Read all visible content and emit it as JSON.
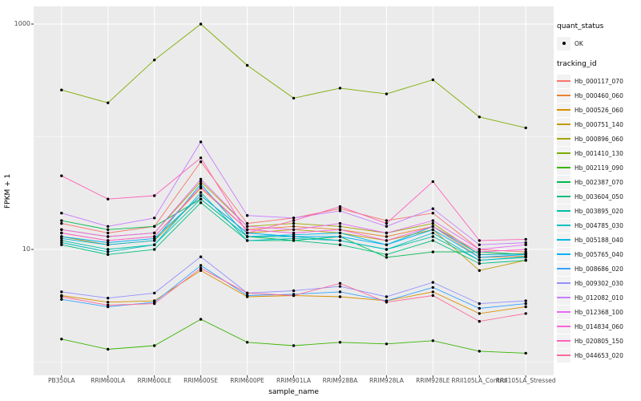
{
  "figure": {
    "bg": "#FFFFFF",
    "panel_bg": "#EBEBEB",
    "grid_color": "#FFFFFF",
    "axis_text_color": "#4D4D4D",
    "tick_mark_color": "#333333"
  },
  "chart_data": {
    "type": "line",
    "title": "",
    "xlabel": "sample_name",
    "ylabel": "FPKM + 1",
    "y_scale": "log10",
    "ylim": [
      0.76,
      1430
    ],
    "grid": true,
    "legend_position": "right",
    "point_color": "#000000",
    "y_ticks": [
      {
        "value": 10,
        "label": "10"
      },
      {
        "value": 1000,
        "label": "1000"
      }
    ],
    "y_minor_gridlines": [
      1,
      100
    ],
    "categories": [
      "PB350LA",
      "RRIM600LA",
      "RRIM600LE",
      "RRIM600SE",
      "RRIM600PE",
      "RRIM901LA",
      "RRIM928BA",
      "RRIM928LA",
      "RRIM928LE",
      "RRII105LA_Control",
      "RRII105LA_Stressed"
    ],
    "legend": {
      "quant_status_title": "quant_status",
      "quant_status_items": [
        {
          "label": "OK",
          "symbol": "point"
        }
      ],
      "tracking_title": "tracking_id"
    },
    "series": [
      {
        "name": "Hb_000117_070",
        "color": "#F8766D",
        "values": [
          17,
          14,
          16,
          60,
          17,
          19,
          23,
          18,
          21,
          10,
          9.5
        ]
      },
      {
        "name": "Hb_000460_060",
        "color": "#EA8331",
        "values": [
          14,
          12,
          13,
          35,
          15,
          16,
          15,
          13,
          16,
          8.5,
          8.7
        ]
      },
      {
        "name": "Hb_000526_060",
        "color": "#D89000",
        "values": [
          3.9,
          3.4,
          3.5,
          6.5,
          3.8,
          3.9,
          3.8,
          3.5,
          4.2,
          2.7,
          3.1
        ]
      },
      {
        "name": "Hb_000751_140",
        "color": "#C09B00",
        "values": [
          13,
          11,
          12,
          30,
          14,
          15,
          14,
          12,
          15,
          6.5,
          8
        ]
      },
      {
        "name": "Hb_000896_060",
        "color": "#A3A500",
        "values": [
          15,
          13,
          14,
          40,
          16,
          17,
          16,
          14,
          17,
          9,
          9.2
        ]
      },
      {
        "name": "Hb_001410_130",
        "color": "#7CAE00",
        "values": [
          260,
          200,
          480,
          1000,
          430,
          220,
          270,
          240,
          320,
          150,
          120
        ]
      },
      {
        "name": "Hb_002119_090",
        "color": "#39B600",
        "values": [
          1.6,
          1.3,
          1.4,
          2.4,
          1.5,
          1.4,
          1.5,
          1.45,
          1.55,
          1.25,
          1.2
        ]
      },
      {
        "name": "Hb_002387_070",
        "color": "#00BB4E",
        "values": [
          18,
          15,
          16,
          28,
          13,
          12,
          13,
          8.5,
          9.5,
          9.5,
          9
        ]
      },
      {
        "name": "Hb_003604_050",
        "color": "#00BF7D",
        "values": [
          11,
          9,
          10,
          26,
          12,
          12,
          11,
          9,
          12,
          7.5,
          8
        ]
      },
      {
        "name": "Hb_003895_020",
        "color": "#00C1A3",
        "values": [
          12,
          10,
          11,
          28,
          13,
          13,
          12,
          10,
          13,
          8,
          8.5
        ]
      },
      {
        "name": "Hb_004785_030",
        "color": "#00BFC4",
        "values": [
          11.5,
          9.5,
          11,
          32,
          12,
          12.5,
          12,
          10,
          14,
          8,
          8.6
        ]
      },
      {
        "name": "Hb_005188_040",
        "color": "#00BAE0",
        "values": [
          12.5,
          11,
          12,
          38,
          13,
          13.5,
          14,
          11,
          16,
          9,
          9.1
        ]
      },
      {
        "name": "Hb_005765_040",
        "color": "#00B0F6",
        "values": [
          13,
          11.5,
          12.5,
          30,
          14,
          13,
          13,
          11,
          15,
          8.5,
          9
        ]
      },
      {
        "name": "Hb_008686_020",
        "color": "#35A2FF",
        "values": [
          3.6,
          3.1,
          3.4,
          7.2,
          3.9,
          4,
          4.2,
          3.5,
          4.6,
          3,
          3.3
        ]
      },
      {
        "name": "Hb_009302_030",
        "color": "#9590FF",
        "values": [
          4.2,
          3.7,
          4.1,
          8.6,
          4.1,
          4.3,
          4.7,
          3.8,
          5.1,
          3.3,
          3.5
        ]
      },
      {
        "name": "Hb_012082_010",
        "color": "#C77CFF",
        "values": [
          21,
          16,
          19,
          90,
          20,
          19,
          22,
          16,
          23,
          11,
          11.5
        ]
      },
      {
        "name": "Hb_012368_100",
        "color": "#E76BF3",
        "values": [
          15,
          13,
          14,
          42,
          16,
          15,
          17,
          14,
          18,
          10,
          11
        ]
      },
      {
        "name": "Hb_014834_060",
        "color": "#FA62DB",
        "values": [
          14,
          12,
          13,
          36,
          15,
          14,
          15,
          12,
          16,
          9.5,
          10
        ]
      },
      {
        "name": "Hb_020805_150",
        "color": "#FF62BC",
        "values": [
          45,
          28,
          30,
          65,
          14,
          18,
          24,
          17,
          40,
          12,
          12.3
        ]
      },
      {
        "name": "Hb_044653_020",
        "color": "#FF6A98",
        "values": [
          3.8,
          3.2,
          3.3,
          6.8,
          4.1,
          3.9,
          5,
          3.4,
          3.9,
          2.3,
          2.7
        ]
      }
    ]
  }
}
